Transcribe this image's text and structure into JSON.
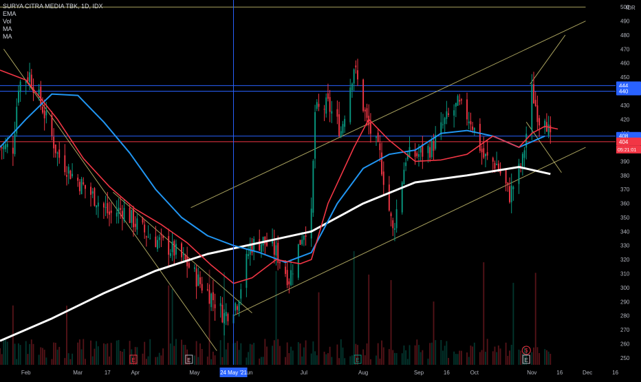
{
  "header": {
    "title": "SURYA CITRA MEDIA TBK, 1D, IDX",
    "indicators": [
      "EMA",
      "Vol",
      "MA",
      "MA"
    ]
  },
  "price_axis": {
    "currency": "IDR",
    "ticks": [
      250,
      260,
      270,
      280,
      290,
      300,
      310,
      320,
      330,
      340,
      350,
      360,
      370,
      380,
      390,
      400,
      410,
      420,
      430,
      440,
      450,
      460,
      470,
      480,
      490,
      500
    ],
    "labels": [
      {
        "text": "444",
        "value": 444,
        "color": "#2962ff"
      },
      {
        "text": "440",
        "value": 440,
        "color": "#2962ff"
      },
      {
        "text": "408",
        "value": 408,
        "color": "#2962ff"
      },
      {
        "text": "404",
        "value": 404,
        "color": "#f23645"
      }
    ],
    "countdown": "05:21:01"
  },
  "time_axis": {
    "ticks": [
      "Feb",
      "Mar",
      "17",
      "Apr",
      "May",
      "Jun",
      "Jul",
      "Aug",
      "Sep",
      "16",
      "Oct",
      "Nov",
      "16",
      "Dec",
      "16"
    ],
    "crosshair_label": "24 May '21"
  },
  "event_markers": [
    {
      "label": "E",
      "type": "earnings",
      "color": "#f23645"
    },
    {
      "label": "E",
      "type": "earnings",
      "color": "#b2b5be"
    },
    {
      "label": "E",
      "type": "earnings",
      "color": "#089981"
    },
    {
      "label": "E",
      "type": "earnings",
      "color": "#f23645"
    },
    {
      "label": "E",
      "type": "earnings",
      "color": "#b2b5be"
    },
    {
      "label": "$",
      "type": "dividend",
      "color": "#f23645"
    }
  ],
  "colors": {
    "background": "#000000",
    "up": "#089981",
    "down": "#f23645",
    "ema": "#f23645",
    "ma_fast": "#2196f3",
    "ma_slow": "#ffffff",
    "trendline": "#c8c070",
    "hline": "#2962ff",
    "crosshair": "#2962ff",
    "axis_text": "#b2b5be"
  },
  "chart_data": {
    "type": "candlestick",
    "symbol": "SURYA CITRA MEDIA TBK",
    "interval": "1D",
    "exchange": "IDX",
    "ylim": [
      245,
      505
    ],
    "path_points": [
      {
        "date": "2021-01-25",
        "close": 400
      },
      {
        "date": "2021-01-28",
        "close": 445
      },
      {
        "date": "2021-02-03",
        "close": 452
      },
      {
        "date": "2021-02-10",
        "close": 428
      },
      {
        "date": "2021-02-18",
        "close": 395
      },
      {
        "date": "2021-02-25",
        "close": 382
      },
      {
        "date": "2021-03-04",
        "close": 372
      },
      {
        "date": "2021-03-11",
        "close": 363
      },
      {
        "date": "2021-03-18",
        "close": 352
      },
      {
        "date": "2021-03-25",
        "close": 356
      },
      {
        "date": "2021-04-01",
        "close": 346
      },
      {
        "date": "2021-04-08",
        "close": 337
      },
      {
        "date": "2021-04-15",
        "close": 332
      },
      {
        "date": "2021-04-22",
        "close": 326
      },
      {
        "date": "2021-04-29",
        "close": 317
      },
      {
        "date": "2021-05-06",
        "close": 303
      },
      {
        "date": "2021-05-12",
        "close": 294
      },
      {
        "date": "2021-05-19",
        "close": 280
      },
      {
        "date": "2021-05-26",
        "close": 290
      },
      {
        "date": "2021-06-02",
        "close": 330
      },
      {
        "date": "2021-06-09",
        "close": 333
      },
      {
        "date": "2021-06-16",
        "close": 325
      },
      {
        "date": "2021-06-23",
        "close": 306
      },
      {
        "date": "2021-06-30",
        "close": 338
      },
      {
        "date": "2021-07-05",
        "close": 350
      },
      {
        "date": "2021-07-07",
        "close": 425
      },
      {
        "date": "2021-07-14",
        "close": 430
      },
      {
        "date": "2021-07-21",
        "close": 412
      },
      {
        "date": "2021-07-28",
        "close": 458
      },
      {
        "date": "2021-08-04",
        "close": 418
      },
      {
        "date": "2021-08-11",
        "close": 394
      },
      {
        "date": "2021-08-18",
        "close": 340
      },
      {
        "date": "2021-08-25",
        "close": 393
      },
      {
        "date": "2021-09-01",
        "close": 395
      },
      {
        "date": "2021-09-08",
        "close": 400
      },
      {
        "date": "2021-09-15",
        "close": 418
      },
      {
        "date": "2021-09-22",
        "close": 430
      },
      {
        "date": "2021-09-29",
        "close": 420
      },
      {
        "date": "2021-10-06",
        "close": 393
      },
      {
        "date": "2021-10-13",
        "close": 388
      },
      {
        "date": "2021-10-20",
        "close": 366
      },
      {
        "date": "2021-10-27",
        "close": 390
      },
      {
        "date": "2021-11-01",
        "close": 440
      },
      {
        "date": "2021-11-05",
        "close": 420
      },
      {
        "date": "2021-11-08",
        "close": 425
      },
      {
        "date": "2021-11-11",
        "close": 404
      }
    ],
    "ema_points": [
      {
        "date": "2021-01-18",
        "value": 455
      },
      {
        "date": "2021-02-01",
        "value": 448
      },
      {
        "date": "2021-02-18",
        "value": 420
      },
      {
        "date": "2021-03-04",
        "value": 392
      },
      {
        "date": "2021-03-18",
        "value": 372
      },
      {
        "date": "2021-04-01",
        "value": 356
      },
      {
        "date": "2021-04-15",
        "value": 345
      },
      {
        "date": "2021-04-29",
        "value": 332
      },
      {
        "date": "2021-05-12",
        "value": 316
      },
      {
        "date": "2021-05-24",
        "value": 303
      },
      {
        "date": "2021-06-03",
        "value": 307
      },
      {
        "date": "2021-06-16",
        "value": 320
      },
      {
        "date": "2021-06-29",
        "value": 317
      },
      {
        "date": "2021-07-05",
        "value": 320
      },
      {
        "date": "2021-07-14",
        "value": 360
      },
      {
        "date": "2021-07-28",
        "value": 400
      },
      {
        "date": "2021-08-05",
        "value": 420
      },
      {
        "date": "2021-08-16",
        "value": 405
      },
      {
        "date": "2021-08-30",
        "value": 390
      },
      {
        "date": "2021-09-13",
        "value": 391
      },
      {
        "date": "2021-09-27",
        "value": 395
      },
      {
        "date": "2021-10-11",
        "value": 408
      },
      {
        "date": "2021-10-25",
        "value": 400
      },
      {
        "date": "2021-11-01",
        "value": 410
      },
      {
        "date": "2021-11-08",
        "value": 415
      },
      {
        "date": "2021-11-15",
        "value": 413
      }
    ],
    "ma_fast_points": [
      {
        "date": "2021-01-18",
        "value": 400
      },
      {
        "date": "2021-02-01",
        "value": 420
      },
      {
        "date": "2021-02-15",
        "value": 438
      },
      {
        "date": "2021-03-01",
        "value": 437
      },
      {
        "date": "2021-03-15",
        "value": 418
      },
      {
        "date": "2021-03-29",
        "value": 396
      },
      {
        "date": "2021-04-12",
        "value": 370
      },
      {
        "date": "2021-04-26",
        "value": 350
      },
      {
        "date": "2021-05-10",
        "value": 337
      },
      {
        "date": "2021-05-24",
        "value": 330
      },
      {
        "date": "2021-06-07",
        "value": 325
      },
      {
        "date": "2021-06-21",
        "value": 318
      },
      {
        "date": "2021-07-05",
        "value": 325
      },
      {
        "date": "2021-07-19",
        "value": 360
      },
      {
        "date": "2021-08-02",
        "value": 385
      },
      {
        "date": "2021-08-16",
        "value": 395
      },
      {
        "date": "2021-08-30",
        "value": 398
      },
      {
        "date": "2021-09-13",
        "value": 410
      },
      {
        "date": "2021-09-27",
        "value": 412
      },
      {
        "date": "2021-10-11",
        "value": 408
      },
      {
        "date": "2021-10-25",
        "value": 400
      },
      {
        "date": "2021-11-08",
        "value": 408
      }
    ],
    "ma_slow_points": [
      {
        "date": "2021-01-18",
        "value": 262
      },
      {
        "date": "2021-02-15",
        "value": 278
      },
      {
        "date": "2021-03-15",
        "value": 296
      },
      {
        "date": "2021-04-12",
        "value": 312
      },
      {
        "date": "2021-05-10",
        "value": 324
      },
      {
        "date": "2021-06-07",
        "value": 332
      },
      {
        "date": "2021-07-05",
        "value": 340
      },
      {
        "date": "2021-08-02",
        "value": 360
      },
      {
        "date": "2021-08-30",
        "value": 375
      },
      {
        "date": "2021-09-27",
        "value": 380
      },
      {
        "date": "2021-10-25",
        "value": 386
      },
      {
        "date": "2021-11-11",
        "value": 381
      }
    ],
    "horizontal_levels": [
      444,
      440,
      408,
      404
    ],
    "trendlines": [
      {
        "from": {
          "date": "2021-01-18",
          "value": 500
        },
        "to": {
          "date": "2021-11-30",
          "value": 500
        }
      },
      {
        "from": {
          "date": "2021-05-01",
          "value": 357
        },
        "to": {
          "date": "2021-11-30",
          "value": 490
        }
      },
      {
        "from": {
          "date": "2021-05-24",
          "value": 280
        },
        "to": {
          "date": "2021-11-30",
          "value": 400
        }
      },
      {
        "from": {
          "date": "2021-01-20",
          "value": 470
        },
        "to": {
          "date": "2021-05-15",
          "value": 255
        }
      },
      {
        "from": {
          "date": "2021-03-20",
          "value": 368
        },
        "to": {
          "date": "2021-06-03",
          "value": 282
        }
      },
      {
        "from": {
          "date": "2021-10-31",
          "value": 445
        },
        "to": {
          "date": "2021-11-19",
          "value": 480
        }
      },
      {
        "from": {
          "date": "2021-10-29",
          "value": 418
        },
        "to": {
          "date": "2021-11-17",
          "value": 382
        }
      }
    ]
  }
}
